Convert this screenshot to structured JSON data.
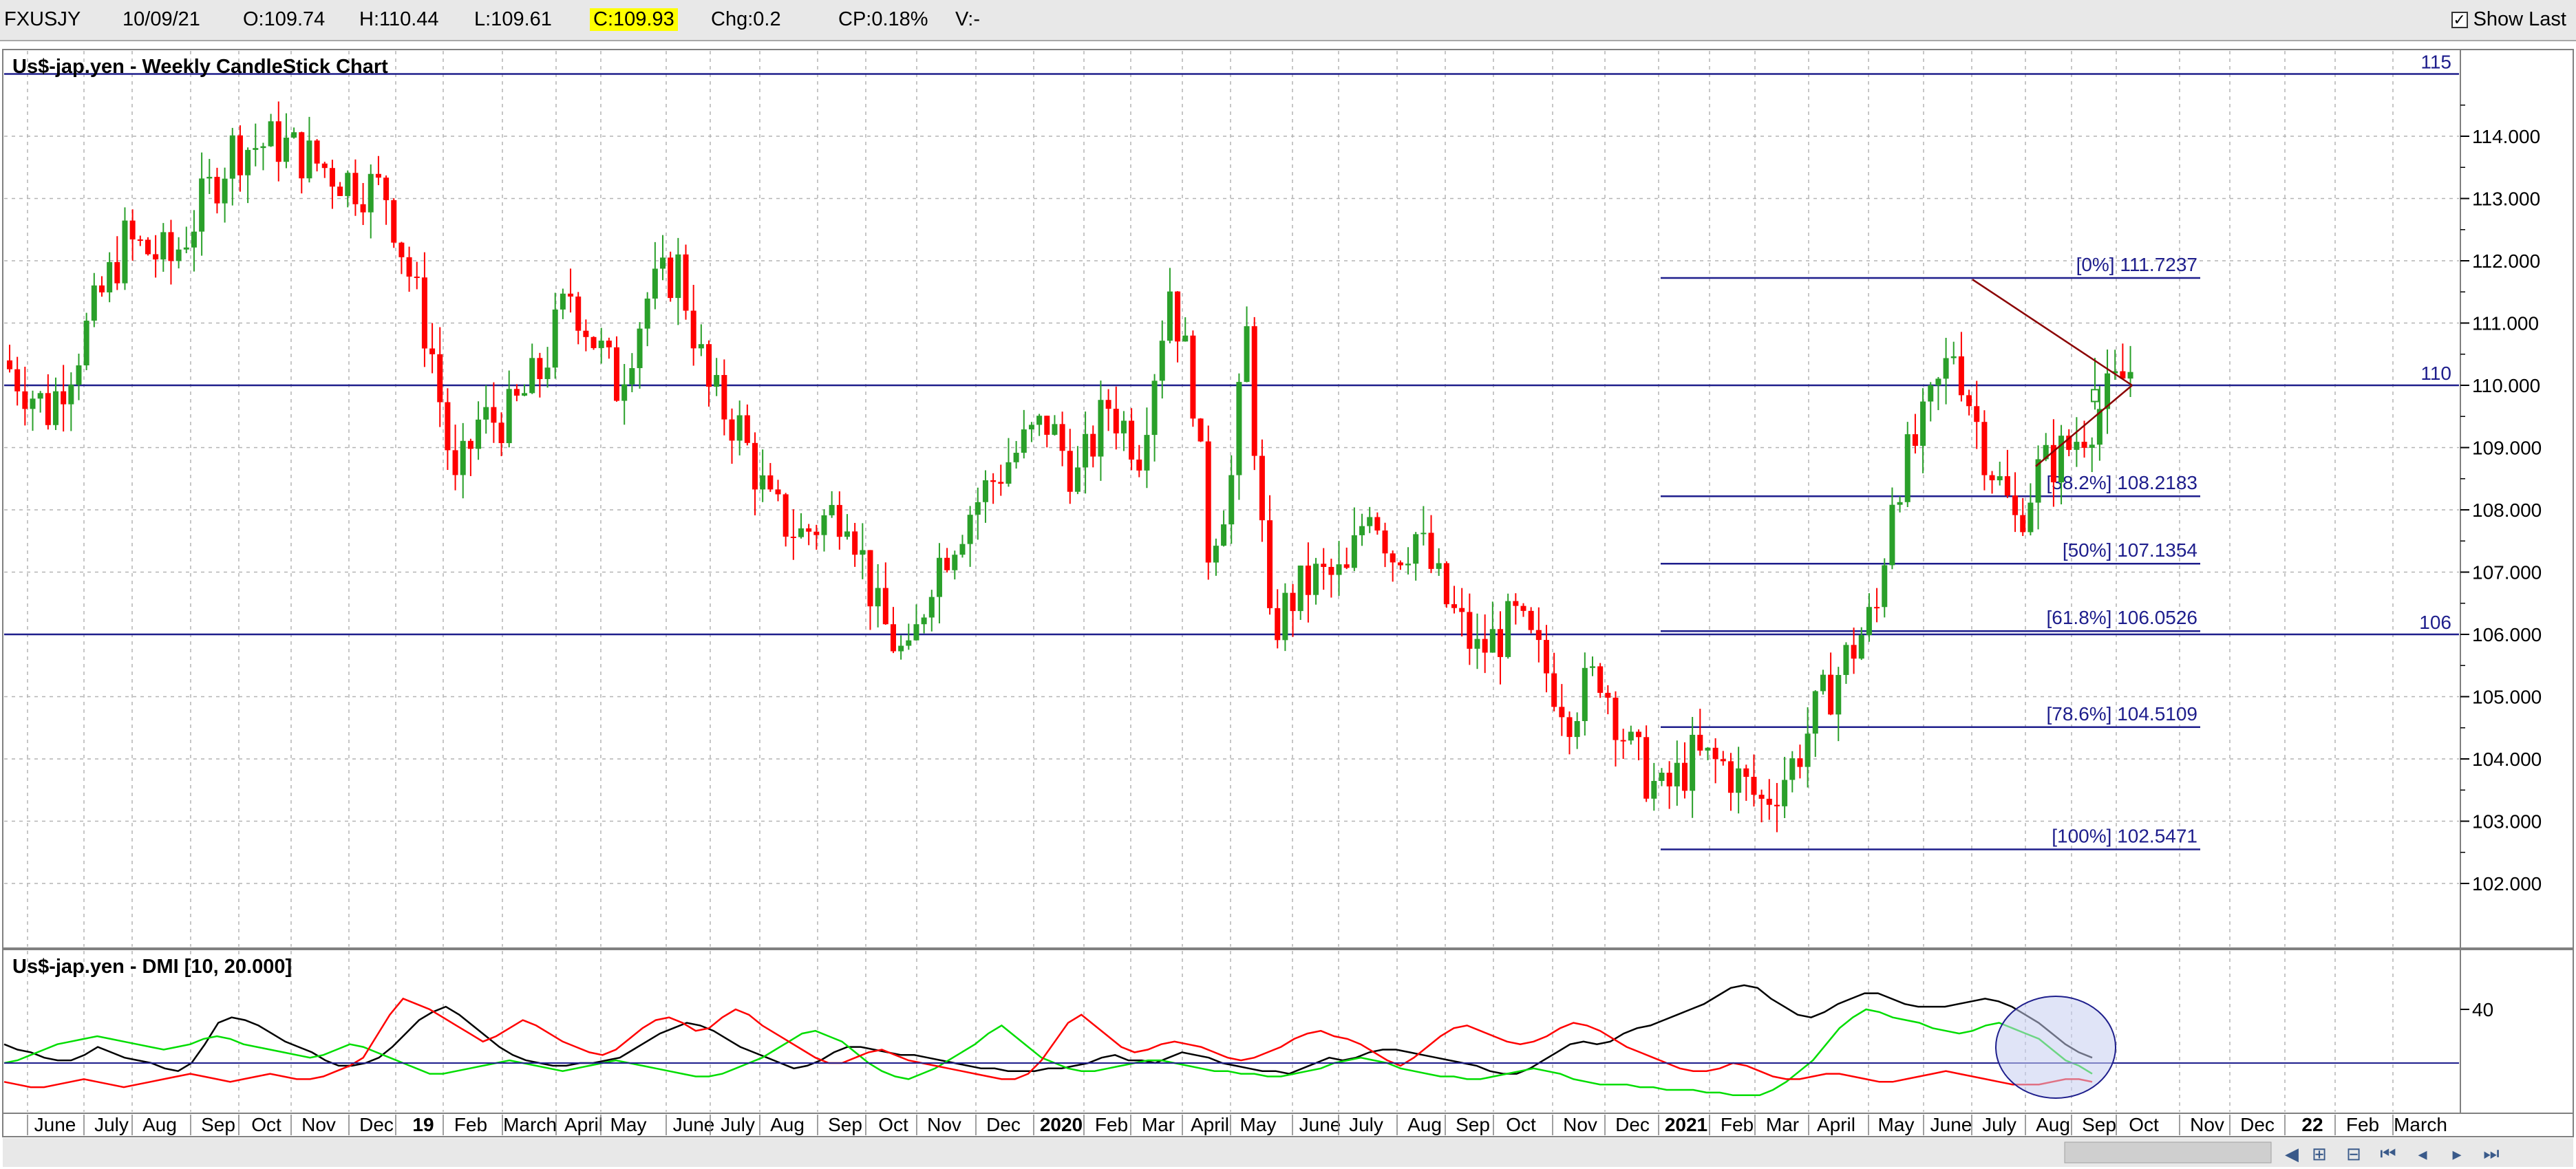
{
  "header": {
    "symbol": "FXUSJY",
    "date": "10/09/21",
    "open": "O:109.74",
    "high": "H:110.44",
    "low": "L:109.61",
    "close": "C:109.93",
    "change": "Chg:0.2",
    "change_pct": "CP:0.18%",
    "volume": "V:-",
    "show_last_label": "Show Last",
    "show_last_checked": true
  },
  "colors": {
    "up": "#2aa02a",
    "down": "#ff0000",
    "line": "#1e1e8c",
    "last": "#0000ff",
    "grid": "#b4b4b4"
  },
  "chart_data": [
    {
      "type": "candlestick",
      "title": "Us$-jap.yen - Weekly CandleStick Chart",
      "ylim": [
        101.1,
        115.3
      ],
      "y_ticks": [
        "114.000",
        "113.000",
        "112.000",
        "111.000",
        "110.000",
        "109.000",
        "108.000",
        "107.000",
        "106.000",
        "105.000",
        "104.000",
        "103.000",
        "102.000"
      ],
      "x_labels": [
        "June",
        "July",
        "Aug",
        "Sep",
        "Oct",
        "Nov",
        "Dec",
        "19",
        "Feb",
        "March",
        "April",
        "May",
        "June",
        "July",
        "Aug",
        "Sep",
        "Oct",
        "Nov",
        "Dec",
        "2020",
        "Feb",
        "Mar",
        "April",
        "May",
        "June",
        "July",
        "Aug",
        "Sep",
        "Oct",
        "Nov",
        "Dec",
        "2021",
        "Feb",
        "Mar",
        "April",
        "May",
        "June",
        "July",
        "Aug",
        "Sep",
        "Oct",
        "Nov",
        "Dec",
        "22",
        "Feb",
        "March"
      ],
      "horizontal_lines": [
        {
          "value": 115,
          "label": "115"
        },
        {
          "value": 110,
          "label": "110"
        },
        {
          "value": 106,
          "label": "106"
        }
      ],
      "fibonacci": {
        "levels": [
          {
            "value": 111.7237,
            "label": "[0%] 111.7237"
          },
          {
            "value": 108.2183,
            "label": "[38.2%] 108.2183"
          },
          {
            "value": 107.1354,
            "label": "[50%] 107.1354"
          },
          {
            "value": 106.0526,
            "label": "[61.8%] 106.0526"
          },
          {
            "value": 104.5109,
            "label": "[78.6%] 104.5109"
          },
          {
            "value": 102.5471,
            "label": "[100%] 102.5471"
          }
        ]
      },
      "triangle": {
        "apex_value": 110.0,
        "upper_start_value": 111.7,
        "lower_start_value": 108.7
      },
      "last_candle": {
        "open": 109.74,
        "high": 110.44,
        "low": 109.61,
        "close": 109.93
      }
    },
    {
      "type": "line",
      "title": "Us$-jap.yen - DMI [10, 20.000]",
      "y_ticks": [
        "40"
      ],
      "reference_level": 20,
      "series": [
        {
          "color": "#000000",
          "values": [
            27,
            25,
            24,
            22,
            21,
            21,
            23,
            26,
            24,
            22,
            21,
            20,
            18,
            17,
            20,
            27,
            35,
            37,
            36,
            34,
            31,
            28,
            26,
            24,
            21,
            19,
            19,
            20,
            22,
            26,
            31,
            36,
            39,
            41,
            38,
            34,
            30,
            26,
            23,
            21,
            20,
            19,
            19,
            20,
            20,
            21,
            22,
            25,
            28,
            31,
            33,
            35,
            34,
            32,
            29,
            26,
            24,
            22,
            20,
            18,
            19,
            21,
            24,
            26,
            26,
            25,
            24,
            23,
            23,
            22,
            21,
            20,
            19,
            18,
            18,
            17,
            17,
            17,
            18,
            18,
            19,
            20,
            22,
            23,
            21,
            21,
            20,
            22,
            24,
            23,
            22,
            20,
            19,
            18,
            17,
            17,
            16,
            18,
            20,
            22,
            21,
            22,
            24,
            25,
            25,
            24,
            23,
            22,
            21,
            20,
            19,
            17,
            16,
            16,
            18,
            21,
            24,
            27,
            28,
            27,
            28,
            31,
            33,
            34,
            36,
            38,
            40,
            42,
            45,
            48,
            49,
            48,
            44,
            41,
            38,
            37,
            39,
            42,
            44,
            46,
            46,
            44,
            42,
            41,
            41,
            41,
            42,
            43,
            44,
            43,
            41,
            38,
            35,
            31,
            27,
            24,
            22
          ]
        },
        {
          "color": "#00dd00",
          "values": [
            20,
            21,
            23,
            25,
            27,
            28,
            29,
            30,
            29,
            28,
            27,
            26,
            25,
            26,
            27,
            29,
            30,
            29,
            27,
            26,
            25,
            24,
            23,
            22,
            23,
            25,
            27,
            26,
            24,
            22,
            20,
            18,
            16,
            16,
            17,
            18,
            19,
            20,
            21,
            20,
            19,
            18,
            17,
            18,
            19,
            20,
            21,
            20,
            19,
            18,
            17,
            16,
            15,
            15,
            16,
            18,
            20,
            22,
            25,
            28,
            31,
            32,
            30,
            28,
            24,
            20,
            17,
            15,
            14,
            16,
            18,
            21,
            24,
            27,
            31,
            34,
            30,
            26,
            22,
            20,
            18,
            17,
            17,
            18,
            19,
            20,
            21,
            21,
            20,
            19,
            18,
            17,
            17,
            16,
            16,
            15,
            15,
            16,
            17,
            18,
            20,
            21,
            22,
            21,
            20,
            18,
            17,
            16,
            15,
            15,
            14,
            14,
            15,
            16,
            17,
            18,
            17,
            16,
            14,
            13,
            12,
            12,
            12,
            11,
            11,
            10,
            10,
            10,
            9,
            9,
            8,
            8,
            8,
            10,
            13,
            17,
            21,
            27,
            33,
            37,
            40,
            39,
            37,
            36,
            35,
            33,
            32,
            31,
            32,
            34,
            35,
            33,
            31,
            29,
            25,
            21,
            19,
            16
          ]
        },
        {
          "color": "#ff0000",
          "values": [
            13,
            12,
            11,
            11,
            12,
            13,
            14,
            13,
            12,
            11,
            12,
            13,
            14,
            15,
            16,
            15,
            14,
            13,
            14,
            15,
            16,
            15,
            14,
            14,
            15,
            17,
            19,
            22,
            30,
            38,
            44,
            42,
            40,
            37,
            34,
            31,
            28,
            30,
            33,
            36,
            34,
            31,
            28,
            26,
            24,
            23,
            25,
            29,
            33,
            36,
            37,
            35,
            32,
            33,
            37,
            40,
            38,
            34,
            31,
            28,
            25,
            22,
            20,
            20,
            22,
            24,
            25,
            23,
            21,
            20,
            19,
            18,
            17,
            16,
            15,
            14,
            14,
            16,
            21,
            28,
            35,
            38,
            34,
            30,
            26,
            24,
            25,
            27,
            28,
            27,
            26,
            24,
            22,
            21,
            22,
            24,
            26,
            29,
            31,
            32,
            30,
            29,
            27,
            24,
            21,
            19,
            22,
            26,
            30,
            33,
            34,
            32,
            30,
            28,
            27,
            28,
            30,
            33,
            35,
            34,
            32,
            29,
            26,
            24,
            22,
            20,
            18,
            17,
            17,
            18,
            20,
            19,
            17,
            15,
            14,
            14,
            15,
            16,
            16,
            15,
            14,
            13,
            13,
            14,
            15,
            16,
            17,
            16,
            15,
            14,
            13,
            12,
            12,
            12,
            13,
            14,
            14,
            13
          ]
        }
      ]
    }
  ]
}
